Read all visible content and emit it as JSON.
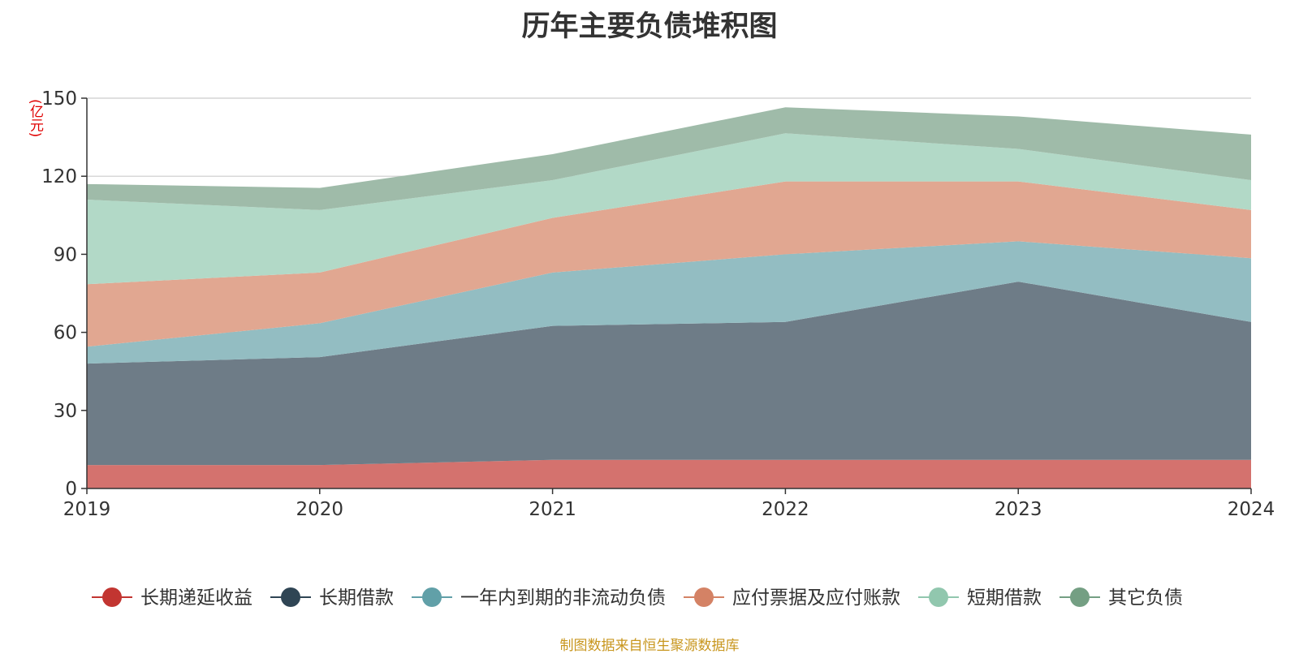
{
  "chart_data": {
    "type": "area",
    "stacked": true,
    "title": "历年主要负债堆积图",
    "unit_label": "(亿元)",
    "x": [
      "2019",
      "2020",
      "2021",
      "2022",
      "2023",
      "2024"
    ],
    "ylim": [
      0,
      150
    ],
    "yticks": [
      0,
      30,
      60,
      90,
      120,
      150
    ],
    "grid": true,
    "legend_position": "bottom",
    "series": [
      {
        "name": "长期递延收益",
        "color": "#c23531",
        "area_color": "#d4726e",
        "values": [
          9,
          9,
          11,
          11,
          11,
          11
        ]
      },
      {
        "name": "长期借款",
        "color": "#2f4554",
        "area_color": "#6e7c87",
        "values": [
          39,
          41.5,
          51.5,
          53,
          68.5,
          53
        ]
      },
      {
        "name": "一年内到期的非流动负债",
        "color": "#61a0a8",
        "area_color": "#93bdc2",
        "values": [
          6.5,
          13,
          20.5,
          26,
          15.5,
          24.5
        ]
      },
      {
        "name": "应付票据及应付账款",
        "color": "#d48265",
        "area_color": "#e1a791",
        "values": [
          24,
          19.5,
          21,
          28,
          23,
          18.5
        ]
      },
      {
        "name": "短期借款",
        "color": "#91c7ae",
        "area_color": "#b2d9c7",
        "values": [
          32.5,
          24,
          14.5,
          18.5,
          12.5,
          11.5
        ]
      },
      {
        "name": "其它负债",
        "color": "#749f83",
        "area_color": "#9fbba9",
        "values": [
          6,
          8.5,
          10,
          10,
          12.5,
          17.5
        ]
      }
    ]
  },
  "source_note": "制图数据来自恒生聚源数据库"
}
